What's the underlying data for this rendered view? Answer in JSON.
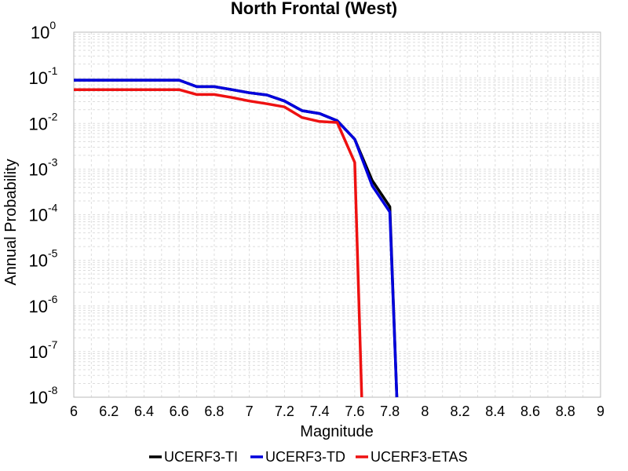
{
  "chart_data": {
    "type": "line",
    "title": "North Frontal  (West)",
    "xlabel": "Magnitude",
    "ylabel": "Annual Probability",
    "xlim": [
      6,
      9
    ],
    "ylim": [
      1e-08,
      1
    ],
    "yscale": "log",
    "grid": true,
    "legend_position": "bottom",
    "x_ticks": [
      "6",
      "6.2",
      "6.4",
      "6.6",
      "6.8",
      "7",
      "7.2",
      "7.4",
      "7.6",
      "7.8",
      "8",
      "8.2",
      "8.4",
      "8.6",
      "8.8",
      "9"
    ],
    "y_ticks": [
      {
        "base": "10",
        "exp": "0"
      },
      {
        "base": "10",
        "exp": "-1"
      },
      {
        "base": "10",
        "exp": "-2"
      },
      {
        "base": "10",
        "exp": "-3"
      },
      {
        "base": "10",
        "exp": "-4"
      },
      {
        "base": "10",
        "exp": "-5"
      },
      {
        "base": "10",
        "exp": "-6"
      },
      {
        "base": "10",
        "exp": "-7"
      },
      {
        "base": "10",
        "exp": "-8"
      }
    ],
    "series": [
      {
        "name": "UCERF3-TI",
        "color": "#000000",
        "points": [
          [
            6.0,
            0.089
          ],
          [
            6.1,
            0.089
          ],
          [
            6.2,
            0.089
          ],
          [
            6.3,
            0.089
          ],
          [
            6.4,
            0.089
          ],
          [
            6.5,
            0.089
          ],
          [
            6.6,
            0.089
          ],
          [
            6.7,
            0.064
          ],
          [
            6.8,
            0.064
          ],
          [
            6.9,
            0.055
          ],
          [
            7.0,
            0.047
          ],
          [
            7.1,
            0.042
          ],
          [
            7.2,
            0.031
          ],
          [
            7.3,
            0.019
          ],
          [
            7.4,
            0.0165
          ],
          [
            7.5,
            0.0115
          ],
          [
            7.6,
            0.0045
          ],
          [
            7.7,
            0.00056
          ],
          [
            7.8,
            0.00015
          ],
          [
            7.84,
            1e-08
          ]
        ]
      },
      {
        "name": "UCERF3-TD",
        "color": "#0000dd",
        "points": [
          [
            6.0,
            0.089
          ],
          [
            6.1,
            0.089
          ],
          [
            6.2,
            0.089
          ],
          [
            6.3,
            0.089
          ],
          [
            6.4,
            0.089
          ],
          [
            6.5,
            0.089
          ],
          [
            6.6,
            0.089
          ],
          [
            6.7,
            0.064
          ],
          [
            6.8,
            0.064
          ],
          [
            6.9,
            0.055
          ],
          [
            7.0,
            0.047
          ],
          [
            7.1,
            0.042
          ],
          [
            7.2,
            0.031
          ],
          [
            7.3,
            0.019
          ],
          [
            7.4,
            0.0165
          ],
          [
            7.5,
            0.0115
          ],
          [
            7.6,
            0.0045
          ],
          [
            7.7,
            0.00043
          ],
          [
            7.8,
            0.000115
          ],
          [
            7.84,
            1e-08
          ]
        ]
      },
      {
        "name": "UCERF3-ETAS",
        "color": "#ee1111",
        "points": [
          [
            6.0,
            0.055
          ],
          [
            6.1,
            0.055
          ],
          [
            6.2,
            0.055
          ],
          [
            6.3,
            0.055
          ],
          [
            6.4,
            0.055
          ],
          [
            6.5,
            0.055
          ],
          [
            6.6,
            0.055
          ],
          [
            6.7,
            0.043
          ],
          [
            6.8,
            0.043
          ],
          [
            6.9,
            0.037
          ],
          [
            7.0,
            0.031
          ],
          [
            7.1,
            0.027
          ],
          [
            7.2,
            0.023
          ],
          [
            7.3,
            0.0135
          ],
          [
            7.4,
            0.011
          ],
          [
            7.5,
            0.0105
          ],
          [
            7.6,
            0.0014
          ],
          [
            7.64,
            1e-08
          ]
        ]
      }
    ]
  }
}
